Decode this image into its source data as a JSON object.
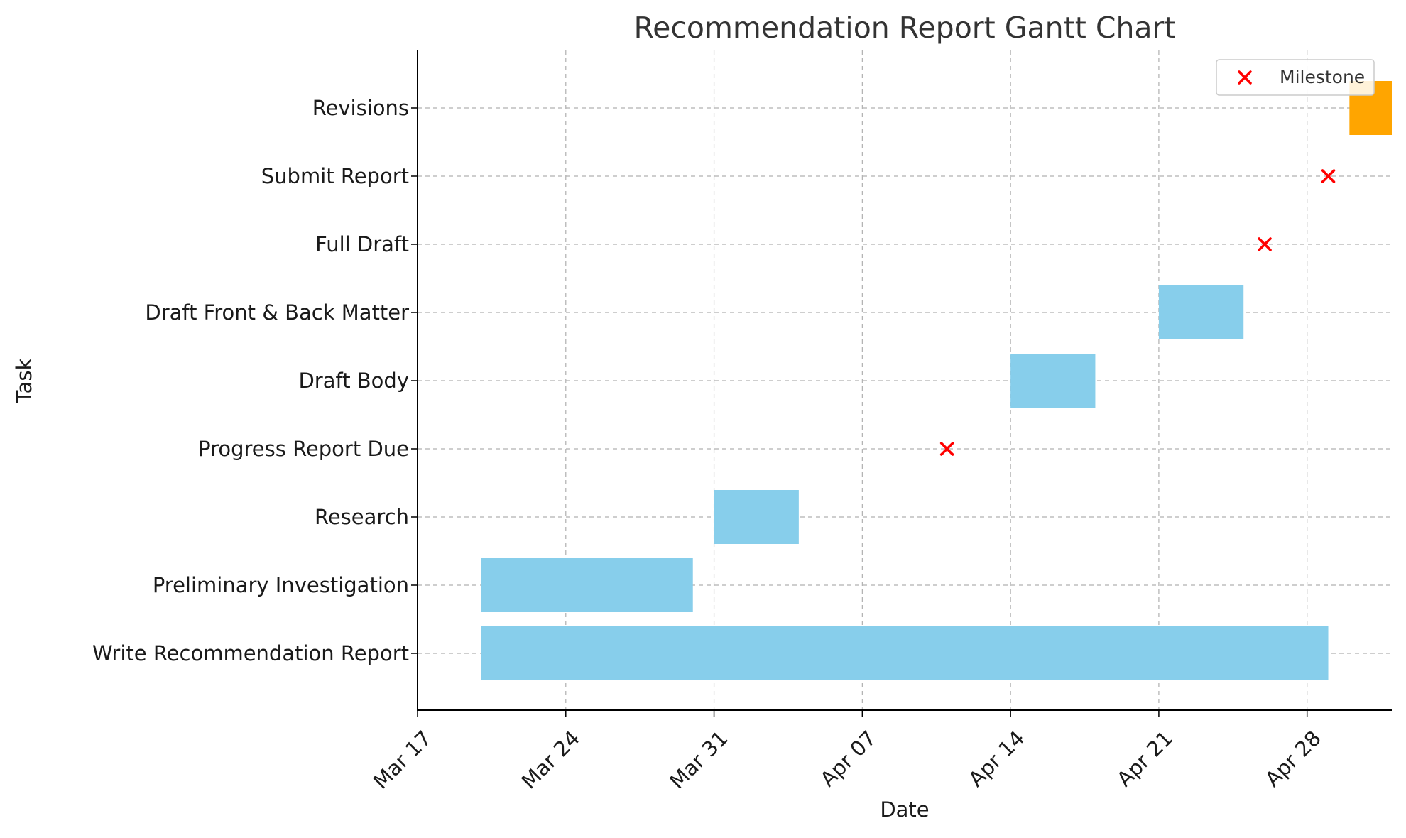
{
  "chart_data": {
    "type": "gantt",
    "title": "Recommendation Report Gantt Chart",
    "xlabel": "Date",
    "ylabel": "Task",
    "x_axis_type": "date",
    "x_ticks": [
      "2024-03-17",
      "2024-03-24",
      "2024-03-31",
      "2024-04-07",
      "2024-04-14",
      "2024-04-21",
      "2024-04-28"
    ],
    "x_tick_labels": [
      "Mar 17",
      "Mar 24",
      "Mar 31",
      "Apr 07",
      "Apr 14",
      "Apr 21",
      "Apr 28"
    ],
    "xlim": [
      "2024-03-17",
      "2024-05-02"
    ],
    "grid": true,
    "legend": {
      "placement": "top-right",
      "entries": [
        "Milestone"
      ]
    },
    "colors": {
      "task": "#87ceeb",
      "revision": "#ffa500",
      "milestone": "#ff0000"
    },
    "tasks": [
      {
        "name": "Write Recommendation Report",
        "start": "2024-03-20",
        "end": "2024-04-29",
        "kind": "task"
      },
      {
        "name": "Preliminary Investigation",
        "start": "2024-03-20",
        "end": "2024-03-30",
        "kind": "task"
      },
      {
        "name": "Research",
        "start": "2024-03-31",
        "end": "2024-04-04",
        "kind": "task"
      },
      {
        "name": "Progress Report Due",
        "date": "2024-04-11",
        "kind": "milestone"
      },
      {
        "name": "Draft Body",
        "start": "2024-04-14",
        "end": "2024-04-18",
        "kind": "task"
      },
      {
        "name": "Draft Front & Back Matter",
        "start": "2024-04-21",
        "end": "2024-04-25",
        "kind": "task"
      },
      {
        "name": "Full Draft",
        "date": "2024-04-26",
        "kind": "milestone"
      },
      {
        "name": "Submit Report",
        "date": "2024-04-29",
        "kind": "milestone"
      },
      {
        "name": "Revisions",
        "start": "2024-04-30",
        "end": "2024-05-02",
        "kind": "revision"
      }
    ]
  }
}
